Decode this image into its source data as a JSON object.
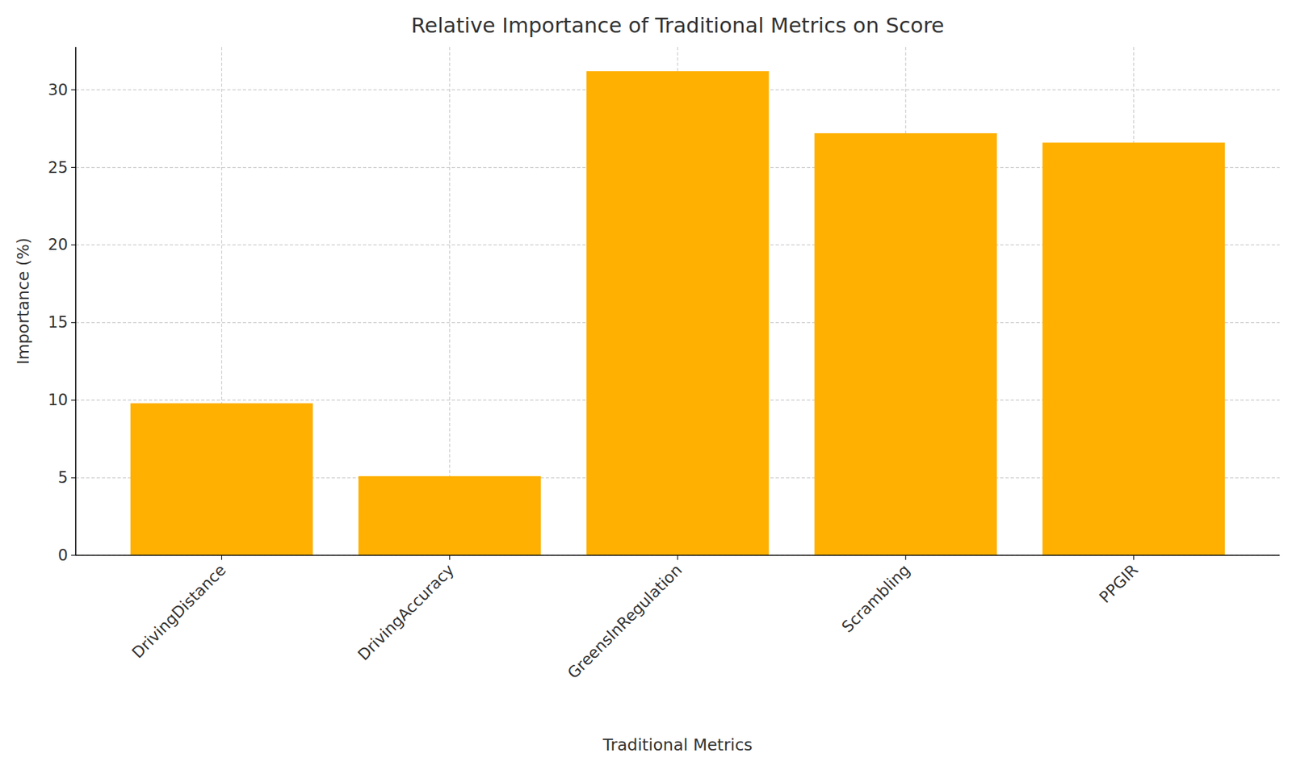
{
  "chart_data": {
    "type": "bar",
    "title": "Relative Importance of Traditional Metrics on Score",
    "x_label": "Traditional Metrics",
    "y_label": "Importance (%)",
    "categories": [
      "DrivingDistance",
      "DrivingAccuracy",
      "GreensInRegulation",
      "Scrambling",
      "PPGIR"
    ],
    "values": [
      9.8,
      5.1,
      31.2,
      27.2,
      26.6
    ],
    "color": "#ffb000",
    "ylim": [
      0,
      32.76
    ],
    "yticks": [
      0,
      5,
      10,
      15,
      20,
      25,
      30
    ],
    "grid": true
  }
}
